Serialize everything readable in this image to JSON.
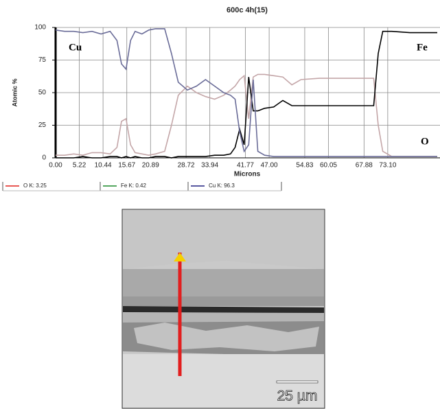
{
  "chart_data": {
    "type": "line",
    "title": "600c 4h(15)",
    "x_label": "Microns",
    "y_label": "Atomic %",
    "x": [
      0,
      2,
      4,
      6,
      8,
      10,
      12,
      13.5,
      14.5,
      15.5,
      16.5,
      17.5,
      19,
      20.5,
      22,
      24,
      25.5,
      27,
      29,
      31,
      33,
      35,
      37,
      38.5,
      39.5,
      40.5,
      41.5,
      42.5,
      43.5,
      44.5,
      46,
      48,
      50,
      52,
      54,
      58,
      62,
      66,
      70,
      71,
      72,
      74,
      78,
      82,
      84
    ],
    "series": [
      {
        "name": "O K: 3.25",
        "color": "#c4a6a8",
        "legend_color": "#e0201c",
        "values": [
          2,
          2,
          3,
          2,
          4,
          4,
          3,
          8,
          28,
          30,
          10,
          4,
          3,
          2,
          3,
          5,
          25,
          48,
          55,
          50,
          47,
          45,
          48,
          52,
          55,
          60,
          63,
          30,
          62,
          64,
          64,
          63,
          62,
          56,
          60,
          61,
          61,
          61,
          61,
          25,
          5,
          1,
          1,
          1,
          1
        ]
      },
      {
        "name": "Fe K: 0.42",
        "color": "#000000",
        "legend_color": "#1a8a2a",
        "values": [
          0,
          0,
          0,
          1,
          0,
          0,
          1,
          1,
          0,
          1,
          0,
          1,
          0,
          0,
          1,
          1,
          0,
          1,
          1,
          1,
          1,
          2,
          2,
          3,
          8,
          22,
          10,
          62,
          36,
          36,
          38,
          39,
          44,
          40,
          40,
          40,
          40,
          40,
          40,
          80,
          97,
          97,
          96,
          96,
          96
        ]
      },
      {
        "name": "Cu K: 96.3",
        "color": "#6a6c98",
        "legend_color": "#202080",
        "values": [
          98,
          97,
          97,
          96,
          97,
          95,
          97,
          90,
          72,
          68,
          90,
          97,
          95,
          98,
          99,
          99,
          80,
          58,
          52,
          55,
          60,
          55,
          50,
          48,
          45,
          20,
          5,
          10,
          60,
          5,
          2,
          1,
          1,
          1,
          1,
          1,
          1,
          1,
          1,
          1,
          1,
          1,
          1,
          1,
          1
        ]
      }
    ],
    "annotations": [
      "Cu",
      "Fe",
      "O"
    ],
    "xlim": [
      0,
      84.6
    ],
    "ylim": [
      0,
      100
    ],
    "xticks": [
      {
        "value": 0,
        "label": "0.00"
      },
      {
        "value": 5.22,
        "label": "5.22"
      },
      {
        "value": 10.44,
        "label": "10.44"
      },
      {
        "value": 15.67,
        "label": "15.67"
      },
      {
        "value": 20.89,
        "label": "20.89"
      },
      {
        "value": 28.72,
        "label": "28.72"
      },
      {
        "value": 33.94,
        "label": "33.94"
      },
      {
        "value": 41.77,
        "label": "41.77"
      },
      {
        "value": 47,
        "label": "47.00"
      },
      {
        "value": 54.83,
        "label": "54.83"
      },
      {
        "value": 60.05,
        "label": "60.05"
      },
      {
        "value": 67.88,
        "label": "67.88"
      },
      {
        "value": 73.1,
        "label": "73.10"
      }
    ],
    "yticks": [
      0,
      25,
      50,
      75,
      100
    ],
    "grid": true
  },
  "micrograph": {
    "scale_bar_label": "25 µm"
  }
}
